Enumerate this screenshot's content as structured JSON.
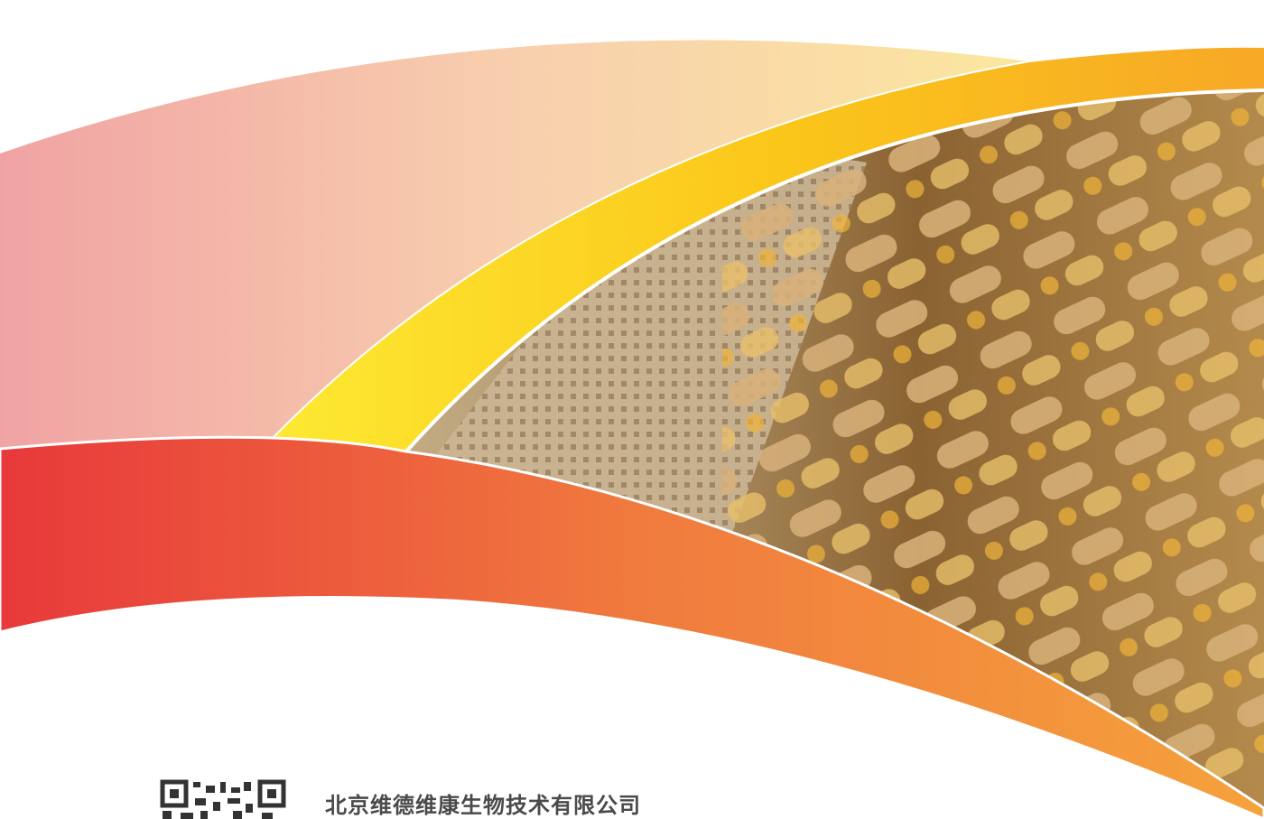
{
  "company": "北京维德维康生物技术有限公司"
}
